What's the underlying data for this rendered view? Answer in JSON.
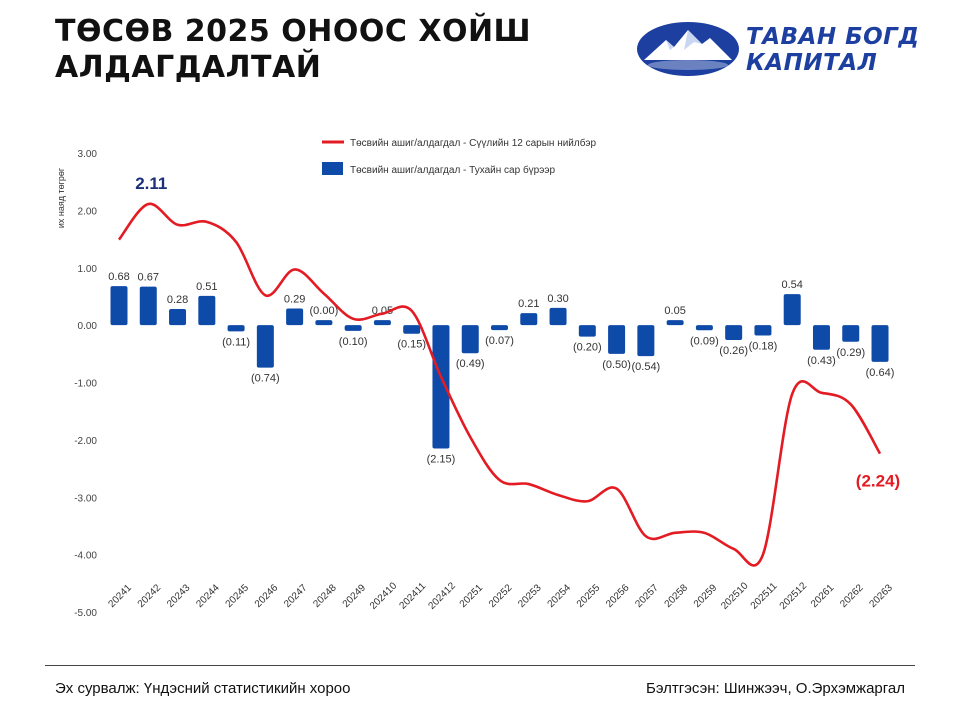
{
  "title": [
    "ТӨСӨВ 2025 ОНООС ХОЙШ",
    "АЛДАГДАЛТАЙ"
  ],
  "logo": {
    "line1": "ТАВАН БОГД",
    "line2": "КАПИТАЛ"
  },
  "footer": {
    "source": "Эх сурвалж: Үндэсний статистикийн хороо",
    "author": "Бэлтгэсэн: Шинжээч, О.Эрхэмжаргал"
  },
  "colors": {
    "bar": "#0e4aa8",
    "line": "#e31b23",
    "title": "#111111",
    "highlight_bar": "#1b2f7a"
  },
  "chart_data": {
    "type": "bar",
    "ylabel": "их наяд төгрөг",
    "ylim": [
      -5,
      3
    ],
    "yticks": [
      3,
      2,
      1,
      0,
      -1,
      -2,
      -3,
      -4,
      -5
    ],
    "ytick_labels": [
      "3.00",
      "2.00",
      "1.00",
      "0.00",
      "-1.00",
      "-2.00",
      "-3.00",
      "-4.00",
      "-5.00"
    ],
    "grid": false,
    "legend_position": "top-center",
    "categories": [
      "20241",
      "20242",
      "20243",
      "20244",
      "20245",
      "20246",
      "20247",
      "20248",
      "20249",
      "202410",
      "202411",
      "202412",
      "20251",
      "20252",
      "20253",
      "20254",
      "20255",
      "20256",
      "20257",
      "20258",
      "20259",
      "202510",
      "202511",
      "202512",
      "20261",
      "20262",
      "20263"
    ],
    "series": [
      {
        "name": "Төсвийн ашиг/алдагдал - Сүүлийн 12 сарын нийлбэр",
        "type": "line",
        "values": [
          1.49,
          2.11,
          1.75,
          1.8,
          1.45,
          0.52,
          0.97,
          0.55,
          0.11,
          0.2,
          0.25,
          -0.9,
          -1.95,
          -2.7,
          -2.77,
          -2.96,
          -3.07,
          -2.85,
          -3.68,
          -3.62,
          -3.62,
          -3.9,
          -4.0,
          -1.2,
          -1.18,
          -1.38,
          -2.24
        ],
        "annotations": [
          {
            "category": "20242",
            "label": "2.11"
          },
          {
            "category": "20263",
            "label": "(2.24)"
          }
        ]
      },
      {
        "name": "Төсвийн ашиг/алдагдал - Тухайн сар бүрээр",
        "type": "bar",
        "values": [
          0.68,
          0.67,
          0.28,
          0.51,
          -0.11,
          -0.74,
          0.29,
          -0.0,
          -0.1,
          0.05,
          -0.15,
          -2.15,
          -0.49,
          -0.07,
          0.21,
          0.3,
          -0.2,
          -0.5,
          -0.54,
          0.05,
          -0.09,
          -0.26,
          -0.18,
          0.54,
          -0.43,
          -0.29,
          -0.64
        ],
        "labels": [
          "0.68",
          "0.67",
          "0.28",
          "0.51",
          "(0.11)",
          "(0.74)",
          "0.29",
          "(0.00)",
          "(0.10)",
          "0.05",
          "(0.15)",
          "(2.15)",
          "(0.49)",
          "(0.07)",
          "0.21",
          "0.30",
          "(0.20)",
          "(0.50)",
          "(0.54)",
          "0.05",
          "(0.09)",
          "(0.26)",
          "(0.18)",
          "0.54",
          "(0.43)",
          "(0.29)",
          "(0.64)"
        ]
      }
    ]
  }
}
